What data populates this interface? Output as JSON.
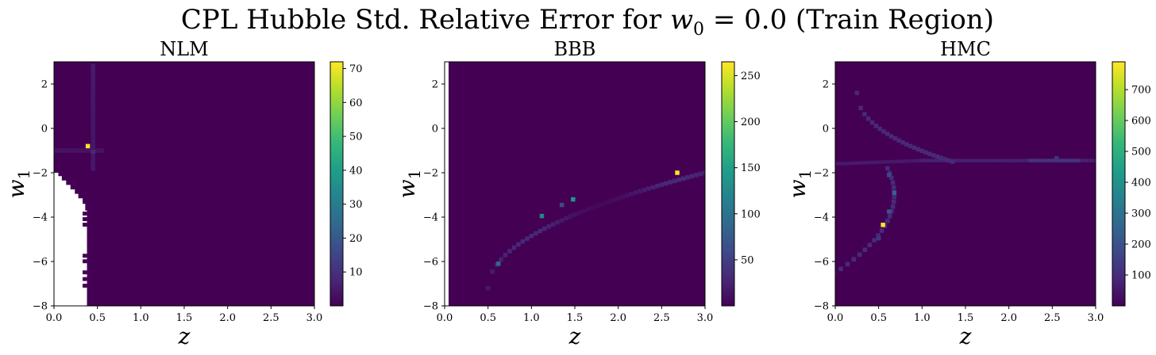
{
  "figure": {
    "suptitle_prefix": "CPL Hubble Std.  Relative Error for ",
    "suptitle_var": "w",
    "suptitle_sub": "0",
    "suptitle_suffix": " = 0.0 (Train Region)"
  },
  "colormap": [
    "#440154",
    "#482878",
    "#3e4989",
    "#31688e",
    "#26828e",
    "#1f9e89",
    "#35b779",
    "#6ece58",
    "#b5de2b",
    "#fde725"
  ],
  "chart_data": [
    {
      "type": "heatmap",
      "title": "NLM",
      "xlabel": "z",
      "ylabel_var": "w",
      "ylabel_sub": "1",
      "xlim": [
        0.0,
        3.0
      ],
      "ylim": [
        -8,
        3
      ],
      "xticks": [
        "0.0",
        "0.5",
        "1.0",
        "1.5",
        "2.0",
        "2.5",
        "3.0"
      ],
      "yticks": [
        "−8",
        "−6",
        "−4",
        "−2",
        "0",
        "2"
      ],
      "colorbar": {
        "range": [
          0,
          72
        ],
        "ticks": [
          "10",
          "20",
          "30",
          "40",
          "50",
          "60",
          "70"
        ]
      },
      "missing_region": {
        "description": "no data (white) for low z, w1 below about -2",
        "x_max_at_bottom": 0.38
      },
      "hotspots": [
        {
          "x": 0.39,
          "y": -0.8,
          "value": 72
        },
        {
          "x": 0.45,
          "y": -1.05,
          "value": 8
        },
        {
          "x": 0.0,
          "y": -1.0,
          "value": 4
        }
      ]
    },
    {
      "type": "heatmap",
      "title": "BBB",
      "xlabel": "z",
      "ylabel_var": "w",
      "ylabel_sub": "1",
      "xlim": [
        0.0,
        3.0
      ],
      "ylim": [
        -8,
        3
      ],
      "xticks": [
        "0.0",
        "0.5",
        "1.0",
        "1.5",
        "2.0",
        "2.5",
        "3.0"
      ],
      "yticks": [
        "−8",
        "−6",
        "−4",
        "−2",
        "0",
        "2"
      ],
      "colorbar": {
        "range": [
          0,
          265
        ],
        "ticks": [
          "50",
          "100",
          "150",
          "200",
          "250"
        ]
      },
      "hotspots": [
        {
          "x": 2.68,
          "y": -2.0,
          "value": 265
        },
        {
          "x": 1.48,
          "y": -3.2,
          "value": 140
        },
        {
          "x": 1.12,
          "y": -3.95,
          "value": 120
        },
        {
          "x": 0.62,
          "y": -6.1,
          "value": 90
        },
        {
          "x": 1.35,
          "y": -3.45,
          "value": 60
        }
      ]
    },
    {
      "type": "heatmap",
      "title": "HMC",
      "xlabel": "z",
      "ylabel_var": "w",
      "ylabel_sub": "1",
      "xlim": [
        0.0,
        3.0
      ],
      "ylim": [
        -8,
        3
      ],
      "xticks": [
        "0.0",
        "0.5",
        "1.0",
        "1.5",
        "2.0",
        "2.5",
        "3.0"
      ],
      "yticks": [
        "−8",
        "−6",
        "−4",
        "−2",
        "0",
        "2"
      ],
      "colorbar": {
        "range": [
          0,
          790
        ],
        "ticks": [
          "100",
          "200",
          "300",
          "400",
          "500",
          "600",
          "700"
        ]
      },
      "hotspots": [
        {
          "x": 0.55,
          "y": -4.35,
          "value": 790
        },
        {
          "x": 0.68,
          "y": -2.9,
          "value": 250
        },
        {
          "x": 0.62,
          "y": -3.75,
          "value": 200
        },
        {
          "x": 0.62,
          "y": -2.1,
          "value": 170
        },
        {
          "x": 0.5,
          "y": -4.95,
          "value": 120
        },
        {
          "x": 2.55,
          "y": -1.35,
          "value": 120
        }
      ]
    }
  ]
}
